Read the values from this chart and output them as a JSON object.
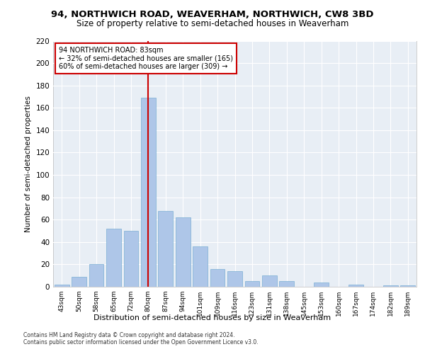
{
  "title1": "94, NORTHWICH ROAD, WEAVERHAM, NORTHWICH, CW8 3BD",
  "title2": "Size of property relative to semi-detached houses in Weaverham",
  "xlabel": "Distribution of semi-detached houses by size in Weaverham",
  "ylabel": "Number of semi-detached properties",
  "categories": [
    "43sqm",
    "50sqm",
    "58sqm",
    "65sqm",
    "72sqm",
    "80sqm",
    "87sqm",
    "94sqm",
    "101sqm",
    "109sqm",
    "116sqm",
    "123sqm",
    "131sqm",
    "138sqm",
    "145sqm",
    "153sqm",
    "160sqm",
    "167sqm",
    "174sqm",
    "182sqm",
    "189sqm"
  ],
  "values": [
    2,
    9,
    20,
    52,
    50,
    169,
    68,
    62,
    36,
    16,
    14,
    5,
    10,
    5,
    0,
    4,
    0,
    2,
    0,
    1,
    1
  ],
  "bar_color": "#aec6e8",
  "bar_edge_color": "#7aafd4",
  "vline_index": 5,
  "vline_color": "#cc0000",
  "annotation_line1": "94 NORTHWICH ROAD: 83sqm",
  "annotation_line2": "← 32% of semi-detached houses are smaller (165)",
  "annotation_line3": "60% of semi-detached houses are larger (309) →",
  "annotation_box_color": "#ffffff",
  "annotation_box_edge": "#cc0000",
  "footer": "Contains HM Land Registry data © Crown copyright and database right 2024.\nContains public sector information licensed under the Open Government Licence v3.0.",
  "ylim": [
    0,
    220
  ],
  "yticks": [
    0,
    20,
    40,
    60,
    80,
    100,
    120,
    140,
    160,
    180,
    200,
    220
  ],
  "bg_color": "#e8eef5",
  "fig_bg_color": "#ffffff",
  "grid_color": "#ffffff"
}
